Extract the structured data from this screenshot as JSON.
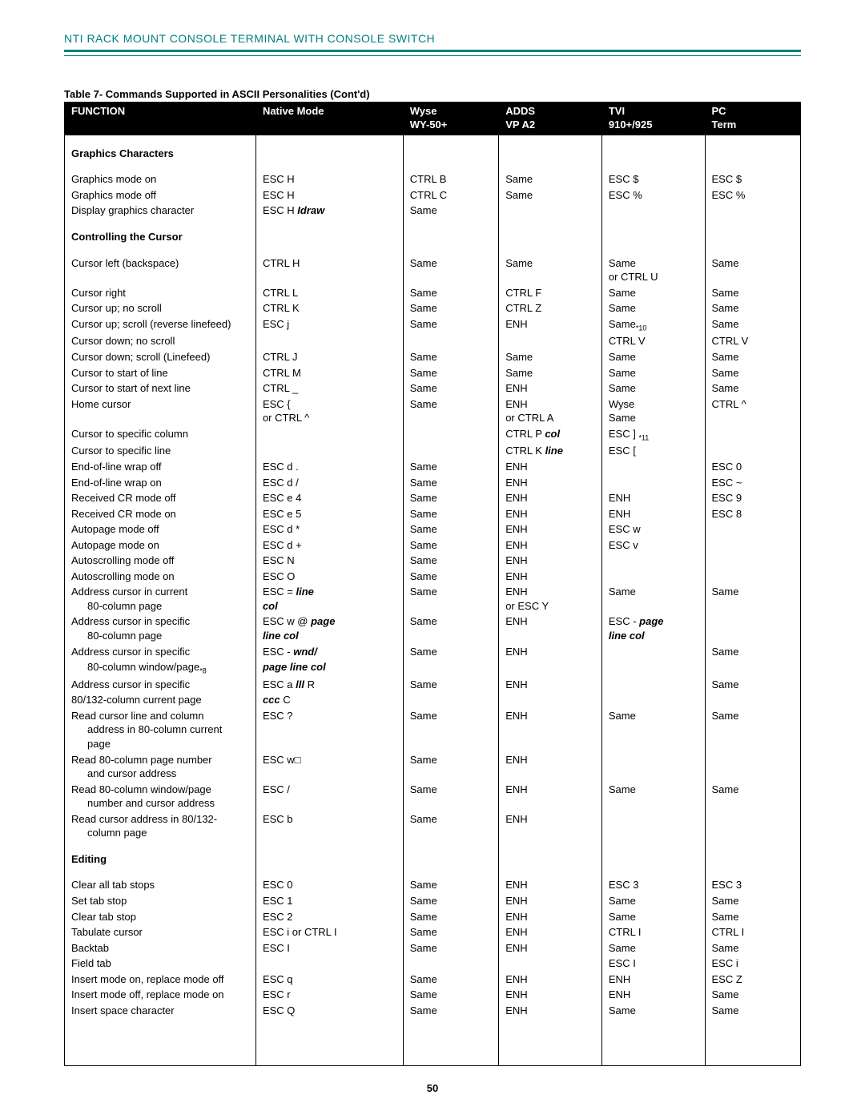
{
  "header": "NTI RACK MOUNT CONSOLE TERMINAL WITH CONSOLE SWITCH",
  "caption": "Table 7- Commands Supported in ASCII Personalities (Cont'd)",
  "page_number": "50",
  "columns": {
    "c0": "FUNCTION",
    "c1": "Native Mode",
    "c2_a": "Wyse",
    "c2_b": "WY-50+",
    "c3_a": "ADDS",
    "c3_b": "VP A2",
    "c4_a": "TVI",
    "c4_b": "910+/925",
    "c5_a": "PC",
    "c5_b": "Term"
  },
  "section1": "Graphics Characters",
  "r1": {
    "f": "Graphics mode on",
    "n": "ESC H",
    "w": "CTRL B",
    "a": "Same",
    "t": "ESC $",
    "p": "ESC $"
  },
  "r2": {
    "f": "Graphics mode off",
    "n": "ESC H",
    "w": "CTRL C",
    "a": "Same",
    "t": "ESC %",
    "p": "ESC %"
  },
  "r3": {
    "f": "Display graphics character",
    "n": "ESC H ",
    "ni": "Idraw",
    "w": "Same",
    "a": "",
    "t": "",
    "p": ""
  },
  "section2": "Controlling the Cursor",
  "r4": {
    "f": "Cursor left (backspace)",
    "n": "CTRL H",
    "w": "Same",
    "a": "Same",
    "t": "Same",
    "t2": "or CTRL U",
    "p": "Same"
  },
  "r5": {
    "f": "Cursor right",
    "n": "CTRL L",
    "w": "Same",
    "a": "CTRL F",
    "t": "Same",
    "p": "Same"
  },
  "r6": {
    "f": "Cursor up; no scroll",
    "n": "CTRL K",
    "w": "Same",
    "a": "CTRL Z",
    "t": "Same",
    "p": "Same"
  },
  "r7": {
    "f": "Cursor up; scroll (reverse linefeed)",
    "n": "ESC j",
    "w": "Same",
    "a": "ENH",
    "t": "Same",
    "ts": "*10",
    "p": "Same"
  },
  "r8": {
    "f": "Cursor down; no scroll",
    "n": "",
    "w": "",
    "a": "",
    "t": "CTRL V",
    "p": "CTRL V"
  },
  "r9": {
    "f": "Cursor down; scroll (Linefeed)",
    "n": "CTRL J",
    "w": "Same",
    "a": "Same",
    "t": "Same",
    "p": "Same"
  },
  "r10": {
    "f": "Cursor to start of line",
    "n": "CTRL M",
    "w": "Same",
    "a": "Same",
    "t": "Same",
    "p": "Same"
  },
  "r11": {
    "f": "Cursor to start of next line",
    "n": "CTRL _",
    "w": "Same",
    "a": "ENH",
    "t": "Same",
    "p": "Same"
  },
  "r12": {
    "f": "Home cursor",
    "n": "ESC {",
    "n2": "or CTRL ^",
    "w": "Same",
    "a": "ENH",
    "a2": "or CTRL A",
    "t": "Wyse",
    "t2": "Same",
    "p": "CTRL ^"
  },
  "r13": {
    "f": "Cursor to specific column",
    "n": "",
    "w": "",
    "a": "CTRL P ",
    "ai": "col",
    "t": "ESC ] ",
    "ts": "*11",
    "p": ""
  },
  "r14": {
    "f": "Cursor to specific line",
    "n": "",
    "w": "",
    "a": "CTRL K ",
    "ai": "line",
    "t": "ESC [",
    "p": ""
  },
  "r15": {
    "f": "End-of-line wrap off",
    "n": "ESC d .",
    "w": "Same",
    "a": "ENH",
    "t": "",
    "p": "ESC 0"
  },
  "r16": {
    "f": "End-of-line wrap on",
    "n": "ESC d /",
    "w": "Same",
    "a": "ENH",
    "t": "",
    "p": "ESC ~"
  },
  "r17": {
    "f": "Received CR mode off",
    "n": "ESC e 4",
    "w": "Same",
    "a": "ENH",
    "t": "ENH",
    "p": "ESC 9"
  },
  "r18": {
    "f": "Received CR mode on",
    "n": "ESC e 5",
    "w": "Same",
    "a": "ENH",
    "t": "ENH",
    "p": "ESC 8"
  },
  "r19": {
    "f": "Autopage mode off",
    "n": "ESC d *",
    "w": "Same",
    "a": "ENH",
    "t": "ESC w",
    "p": ""
  },
  "r20": {
    "f": "Autopage mode on",
    "n": "ESC d +",
    "w": "Same",
    "a": "ENH",
    "t": "ESC v",
    "p": ""
  },
  "r21": {
    "f": "Autoscrolling mode off",
    "n": "ESC N",
    "w": "Same",
    "a": "ENH",
    "t": "",
    "p": ""
  },
  "r22": {
    "f": "Autoscrolling mode on",
    "n": "ESC O",
    "w": "Same",
    "a": "ENH",
    "t": "",
    "p": ""
  },
  "r23": {
    "f": "Address cursor in current",
    "f2": "80-column page",
    "n": "ESC = ",
    "ni": "line",
    "n2i": "col",
    "w": "Same",
    "a": "ENH",
    "a2": "or ESC Y",
    "t": "Same",
    "p": "Same"
  },
  "r24": {
    "f": "Address cursor in specific",
    "f2": "80-column page",
    "n": "ESC w @ ",
    "ni": "page",
    "n2i": "line col",
    "w": "Same",
    "a": "ENH",
    "t": "ESC - ",
    "ti": "page",
    "t2i": "line col",
    "p": ""
  },
  "r25": {
    "f": "Address cursor in specific",
    "n": "ESC - ",
    "ni": "wnd/",
    "w": "Same",
    "a": "ENH",
    "t": "",
    "p": "Same"
  },
  "r26": {
    "f": "80-column window/page",
    "fs": "*8",
    "ni": "page line col",
    "w": "",
    "a": "",
    "t": "",
    "p": ""
  },
  "r27": {
    "f": "Address cursor in specific",
    "n": "ESC a ",
    "ni": "lll ",
    "n2": "R",
    "w": "Same",
    "a": "ENH",
    "t": "",
    "p": "Same"
  },
  "r28": {
    "f": "80/132-column current page",
    "ni": "ccc ",
    "n2": "C",
    "w": "",
    "a": "",
    "t": "",
    "p": ""
  },
  "r29": {
    "f": "Read cursor line and column",
    "f2": "address in 80-column current",
    "f3": "page",
    "n": "ESC ?",
    "w": "Same",
    "a": "ENH",
    "t": "Same",
    "p": "Same"
  },
  "r30": {
    "f": "Read 80-column page number",
    "f2": "and cursor address",
    "n": "ESC w□",
    "w": "Same",
    "a": "ENH",
    "t": "",
    "p": ""
  },
  "r31": {
    "f": "Read 80-column window/page",
    "f2": "number and cursor address",
    "n": "ESC /",
    "w": "Same",
    "a": "ENH",
    "t": "Same",
    "p": "Same"
  },
  "r32": {
    "f": "Read cursor address in 80/132-",
    "f2": "column page",
    "n": "ESC b",
    "w": "Same",
    "a": "ENH",
    "t": "",
    "p": ""
  },
  "section3": "Editing",
  "r33": {
    "f": "Clear all tab stops",
    "n": "ESC 0",
    "w": "Same",
    "a": "ENH",
    "t": "ESC 3",
    "p": "ESC 3"
  },
  "r34": {
    "f": "Set tab stop",
    "n": "ESC 1",
    "w": "Same",
    "a": "ENH",
    "t": "Same",
    "p": "Same"
  },
  "r35": {
    "f": "Clear tab stop",
    "n": "ESC 2",
    "w": "Same",
    "a": "ENH",
    "t": "Same",
    "p": "Same"
  },
  "r36": {
    "f": "Tabulate cursor",
    "n": "ESC i or CTRL I",
    "w": "Same",
    "a": "ENH",
    "t": "CTRL I",
    "p": "CTRL I"
  },
  "r37": {
    "f": "Backtab",
    "n": "ESC I",
    "w": "Same",
    "a": "ENH",
    "t": "Same",
    "p": "Same"
  },
  "r38": {
    "f": "Field tab",
    "n": "",
    "w": "",
    "a": "",
    "t": "ESC I",
    "p": "ESC i"
  },
  "r39": {
    "f": "Insert mode on, replace mode off",
    "n": "ESC q",
    "w": "Same",
    "a": "ENH",
    "t": "ENH",
    "p": "ESC Z"
  },
  "r40": {
    "f": "Insert mode off, replace mode on",
    "n": "ESC r",
    "w": "Same",
    "a": "ENH",
    "t": "ENH",
    "p": "Same"
  },
  "r41": {
    "f": "Insert space character",
    "n": "ESC Q",
    "w": "Same",
    "a": "ENH",
    "t": "Same",
    "p": "Same"
  }
}
